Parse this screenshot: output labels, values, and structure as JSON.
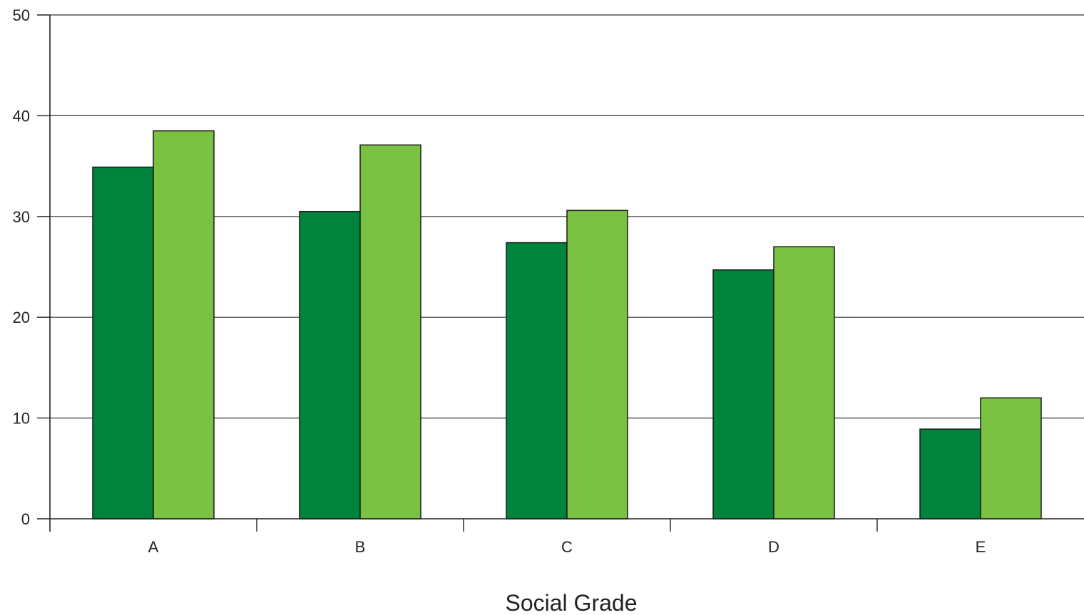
{
  "chart_data": {
    "type": "bar",
    "title": "",
    "xlabel": "Social Grade",
    "ylabel": "",
    "categories": [
      "A",
      "B",
      "C",
      "D",
      "E"
    ],
    "series": [
      {
        "values": [
          34.9,
          30.5,
          27.4,
          24.7,
          8.9
        ],
        "color": "#00833d"
      },
      {
        "values": [
          38.5,
          37.1,
          30.6,
          27.0,
          12.0
        ],
        "color": "#7bc142"
      }
    ],
    "ylim": [
      0,
      50
    ],
    "yticks": [
      0,
      10,
      20,
      30,
      40,
      50
    ],
    "grid": true,
    "legend": "none",
    "colors": {
      "axis": "#222222",
      "grid": "#333333",
      "bar_outline": "#1a1a1a"
    }
  }
}
